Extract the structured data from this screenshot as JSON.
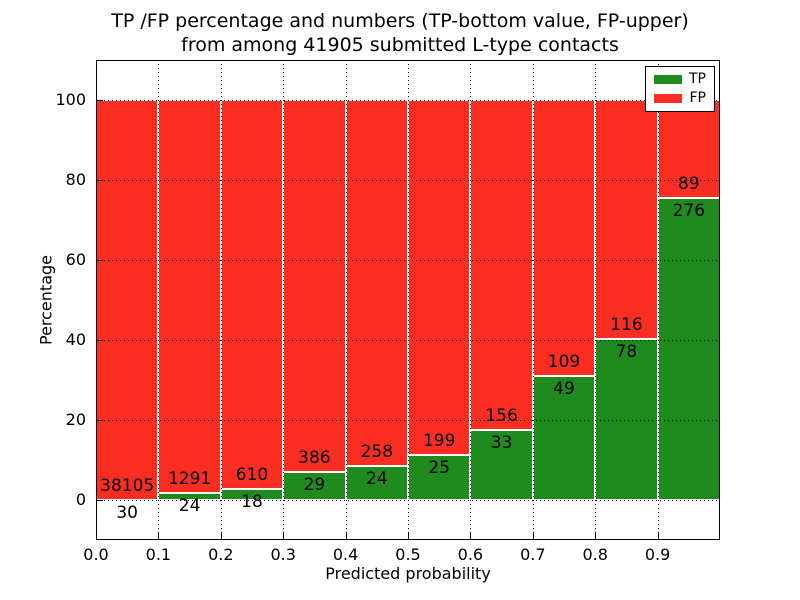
{
  "figure_title": {
    "line1": "TP /FP percentage and numbers (TP-bottom value, FP-upper)",
    "line2": "from among 41905 submitted L-type contacts"
  },
  "chart_data": {
    "type": "bar",
    "stacked": true,
    "title": "TP /FP percentage and numbers (TP-bottom value, FP-upper) from among 41905 submitted L-type contacts",
    "xlabel": "Predicted probability",
    "ylabel": "Percentage",
    "xlim": [
      0.0,
      1.0
    ],
    "ylim": [
      -10,
      110
    ],
    "x_tick_labels": [
      "0.0",
      "0.1",
      "0.2",
      "0.3",
      "0.4",
      "0.5",
      "0.6",
      "0.7",
      "0.8",
      "0.9"
    ],
    "y_tick_values": [
      0,
      20,
      40,
      60,
      80,
      100
    ],
    "grid": "dotted",
    "total_contacts": 41905,
    "bin_width": 0.1,
    "categories": [
      "0.0-0.1",
      "0.1-0.2",
      "0.2-0.3",
      "0.3-0.4",
      "0.4-0.5",
      "0.5-0.6",
      "0.6-0.7",
      "0.7-0.8",
      "0.8-0.9",
      "0.9-1.0"
    ],
    "series": [
      {
        "name": "TP",
        "color": "#1f8b1f",
        "counts": [
          30,
          24,
          18,
          29,
          24,
          25,
          33,
          49,
          78,
          276
        ]
      },
      {
        "name": "FP",
        "color": "#f92d22",
        "counts": [
          38105,
          1291,
          610,
          386,
          258,
          199,
          156,
          109,
          116,
          89
        ]
      }
    ],
    "tp_percent": [
      0.08,
      1.83,
      2.87,
      6.99,
      8.51,
      11.16,
      17.46,
      31.01,
      40.21,
      75.62
    ],
    "legend": {
      "position": "upper right",
      "entries": [
        {
          "label": "TP",
          "color": "#1f8b1f"
        },
        {
          "label": "FP",
          "color": "#f92d22"
        }
      ]
    }
  }
}
